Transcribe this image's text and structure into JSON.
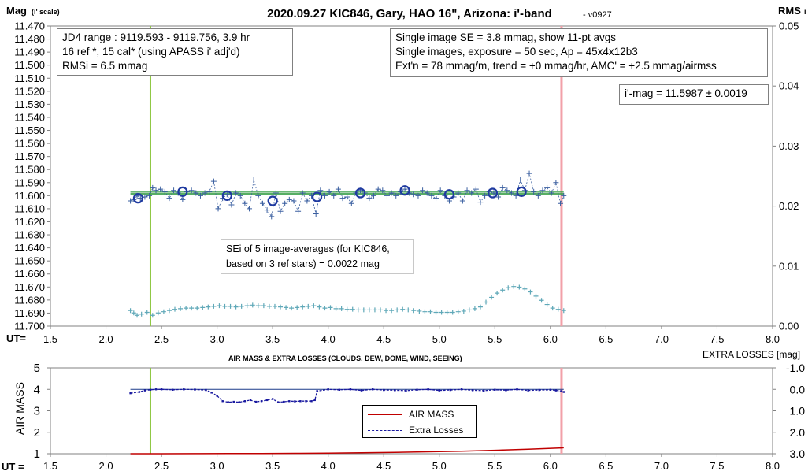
{
  "chart_data": [
    {
      "type": "scatter",
      "title": "2020.09.27 KIC846, Gary, HAO 16\", Arizona: i'-band",
      "version": "- v0927",
      "ylabel": "Mag",
      "ylabel_sub": "(i' scale)",
      "y2label": "RMS",
      "y2label_sub": "i",
      "xlabel": "UT=",
      "xlim": [
        1.5,
        8.0
      ],
      "ylim": [
        11.47,
        11.7
      ],
      "y_reversed": true,
      "y2lim": [
        0.0,
        0.05
      ],
      "x_ticks": [
        "1.5",
        "2.0",
        "2.5",
        "3.0",
        "3.5",
        "4.0",
        "4.5",
        "5.0",
        "5.5",
        "6.0",
        "6.5",
        "7.0",
        "7.5",
        "8.0"
      ],
      "y_ticks": [
        "11.470",
        "11.480",
        "11.490",
        "11.500",
        "11.510",
        "11.520",
        "11.530",
        "11.540",
        "11.550",
        "11.560",
        "11.570",
        "11.580",
        "11.590",
        "11.600",
        "11.610",
        "11.620",
        "11.630",
        "11.640",
        "11.650",
        "11.660",
        "11.670",
        "11.680",
        "11.690",
        "11.700"
      ],
      "y2_ticks": [
        "0.05",
        "0.04",
        "0.03",
        "0.02",
        "0.01",
        "0.00"
      ],
      "grid": false,
      "reference_lines": {
        "green_ut": 2.4,
        "pink_ut": 6.1
      },
      "mean_mag": 11.5987,
      "series": [
        {
          "name": "11-pt averages",
          "x": [
            2.29,
            2.69,
            3.09,
            3.5,
            3.9,
            4.29,
            4.69,
            5.09,
            5.48,
            5.74
          ],
          "y": [
            11.602,
            11.597,
            11.6,
            11.604,
            11.601,
            11.598,
            11.596,
            11.599,
            11.598,
            11.597
          ]
        },
        {
          "name": "Single images",
          "x": [
            2.22,
            2.25,
            2.28,
            2.31,
            2.35,
            2.39,
            2.42,
            2.45,
            2.49,
            2.53,
            2.57,
            2.61,
            2.65,
            2.69,
            2.73,
            2.77,
            2.81,
            2.85,
            2.89,
            2.93,
            2.97,
            3.01,
            3.05,
            3.09,
            3.13,
            3.17,
            3.21,
            3.25,
            3.29,
            3.33,
            3.37,
            3.41,
            3.45,
            3.49,
            3.53,
            3.57,
            3.61,
            3.65,
            3.69,
            3.73,
            3.77,
            3.81,
            3.85,
            3.89,
            3.93,
            3.97,
            4.01,
            4.05,
            4.09,
            4.13,
            4.17,
            4.21,
            4.25,
            4.29,
            4.33,
            4.37,
            4.41,
            4.45,
            4.49,
            4.53,
            4.57,
            4.61,
            4.65,
            4.69,
            4.73,
            4.77,
            4.81,
            4.85,
            4.89,
            4.93,
            4.97,
            5.01,
            5.05,
            5.09,
            5.13,
            5.17,
            5.21,
            5.25,
            5.29,
            5.33,
            5.37,
            5.41,
            5.45,
            5.49,
            5.53,
            5.57,
            5.61,
            5.65,
            5.69,
            5.73,
            5.77,
            5.81,
            5.85,
            5.89,
            5.93,
            5.97,
            6.01,
            6.05,
            6.09,
            6.12
          ],
          "y": [
            11.604,
            11.603,
            11.6,
            11.602,
            11.601,
            11.6,
            11.594,
            11.596,
            11.595,
            11.597,
            11.602,
            11.596,
            11.598,
            11.603,
            11.597,
            11.596,
            11.598,
            11.6,
            11.598,
            11.597,
            11.589,
            11.61,
            11.602,
            11.599,
            11.607,
            11.598,
            11.6,
            11.606,
            11.61,
            11.588,
            11.6,
            11.606,
            11.611,
            11.616,
            11.598,
            11.612,
            11.606,
            11.603,
            11.604,
            11.612,
            11.598,
            11.604,
            11.6,
            11.614,
            11.596,
            11.6,
            11.597,
            11.6,
            11.595,
            11.602,
            11.601,
            11.606,
            11.598,
            11.596,
            11.598,
            11.602,
            11.6,
            11.595,
            11.596,
            11.6,
            11.598,
            11.6,
            11.597,
            11.595,
            11.598,
            11.599,
            11.6,
            11.596,
            11.598,
            11.6,
            11.602,
            11.596,
            11.6,
            11.604,
            11.601,
            11.598,
            11.604,
            11.596,
            11.598,
            11.595,
            11.605,
            11.6,
            11.597,
            11.598,
            11.601,
            11.594,
            11.596,
            11.598,
            11.6,
            11.588,
            11.596,
            11.583,
            11.597,
            11.6,
            11.596,
            11.594,
            11.598,
            11.59,
            11.606,
            11.6
          ]
        },
        {
          "name": "RMSi",
          "x": [
            2.22,
            2.25,
            2.28,
            2.32,
            2.37,
            2.42,
            2.47,
            2.52,
            2.57,
            2.62,
            2.67,
            2.72,
            2.77,
            2.82,
            2.87,
            2.92,
            2.97,
            3.02,
            3.07,
            3.12,
            3.17,
            3.22,
            3.27,
            3.32,
            3.37,
            3.42,
            3.47,
            3.52,
            3.57,
            3.62,
            3.67,
            3.72,
            3.77,
            3.82,
            3.87,
            3.92,
            3.97,
            4.02,
            4.07,
            4.12,
            4.17,
            4.22,
            4.27,
            4.32,
            4.37,
            4.42,
            4.47,
            4.52,
            4.57,
            4.62,
            4.67,
            4.72,
            4.77,
            4.82,
            4.87,
            4.92,
            4.97,
            5.02,
            5.07,
            5.12,
            5.17,
            5.22,
            5.27,
            5.32,
            5.37,
            5.42,
            5.47,
            5.52,
            5.57,
            5.62,
            5.67,
            5.72,
            5.77,
            5.82,
            5.87,
            5.92,
            5.97,
            6.02,
            6.07,
            6.12
          ],
          "y": [
            0.0026,
            0.0022,
            0.0018,
            0.002,
            0.0023,
            0.0018,
            0.0022,
            0.0024,
            0.0026,
            0.0028,
            0.0029,
            0.003,
            0.003,
            0.003,
            0.0031,
            0.0032,
            0.0033,
            0.0034,
            0.0033,
            0.0033,
            0.0032,
            0.0033,
            0.0034,
            0.0035,
            0.0034,
            0.0034,
            0.0033,
            0.0033,
            0.0032,
            0.0031,
            0.003,
            0.0031,
            0.0032,
            0.0033,
            0.0034,
            0.0032,
            0.003,
            0.0031,
            0.0029,
            0.0029,
            0.0028,
            0.0028,
            0.0027,
            0.0027,
            0.0027,
            0.0027,
            0.0027,
            0.0026,
            0.0026,
            0.0027,
            0.0028,
            0.0027,
            0.0026,
            0.0025,
            0.0024,
            0.0024,
            0.0023,
            0.0023,
            0.0023,
            0.0023,
            0.0024,
            0.0025,
            0.0027,
            0.0029,
            0.0032,
            0.004,
            0.0048,
            0.0055,
            0.006,
            0.0064,
            0.0066,
            0.0065,
            0.0062,
            0.0057,
            0.005,
            0.0043,
            0.0036,
            0.003,
            0.0028,
            0.0026
          ]
        }
      ]
    },
    {
      "type": "line",
      "title": "AIR MASS & EXTRA LOSSES (CLOUDS, DEW, DOME, WIND, SEEING)",
      "ylabel": "AIR MASS",
      "y2label": "EXTRA LOSSES [mag]",
      "xlabel": "UT =",
      "xlim": [
        1.5,
        8.0
      ],
      "ylim": [
        1,
        5
      ],
      "y2lim": [
        -1.0,
        3.0
      ],
      "y2_reversed": true,
      "x_ticks": [
        "1.5",
        "2.0",
        "2.5",
        "3.0",
        "3.5",
        "4.0",
        "4.5",
        "5.0",
        "5.5",
        "6.0",
        "6.5",
        "7.0",
        "7.5",
        "8.0"
      ],
      "y_ticks": [
        "5",
        "4",
        "3",
        "2",
        "1"
      ],
      "y2_ticks": [
        "-1.0",
        "0.0",
        "1.0",
        "2.0",
        "3.0"
      ],
      "zero_loss_line": 0.0,
      "series": [
        {
          "name": "AIR MASS",
          "x": [
            2.22,
            2.5,
            2.8,
            3.1,
            3.4,
            3.7,
            4.0,
            4.3,
            4.6,
            4.9,
            5.2,
            5.5,
            5.8,
            6.1,
            6.12
          ],
          "y": [
            1.0,
            1.001,
            1.003,
            1.007,
            1.012,
            1.02,
            1.03,
            1.045,
            1.065,
            1.09,
            1.12,
            1.16,
            1.21,
            1.27,
            1.28
          ]
        },
        {
          "name": "Extra Losses",
          "x": [
            2.22,
            2.3,
            2.35,
            2.4,
            2.45,
            2.5,
            2.6,
            2.7,
            2.8,
            2.9,
            2.95,
            3.0,
            3.05,
            3.1,
            3.15,
            3.2,
            3.25,
            3.3,
            3.35,
            3.4,
            3.45,
            3.5,
            3.55,
            3.6,
            3.65,
            3.7,
            3.75,
            3.8,
            3.85,
            3.88,
            3.9,
            4.0,
            4.1,
            4.2,
            4.3,
            4.4,
            4.5,
            4.6,
            4.7,
            4.8,
            4.9,
            5.0,
            5.1,
            5.2,
            5.3,
            5.4,
            5.5,
            5.6,
            5.7,
            5.8,
            5.9,
            6.0,
            6.05,
            6.1,
            6.12
          ],
          "y": [
            0.18,
            0.12,
            0.05,
            0.02,
            0.0,
            0.0,
            0.02,
            0.0,
            0.01,
            0.03,
            0.15,
            0.3,
            0.55,
            0.6,
            0.58,
            0.6,
            0.55,
            0.5,
            0.58,
            0.55,
            0.5,
            0.45,
            0.6,
            0.58,
            0.55,
            0.56,
            0.55,
            0.55,
            0.55,
            0.5,
            0.08,
            0.0,
            0.02,
            0.0,
            0.05,
            0.0,
            0.03,
            0.04,
            0.06,
            0.02,
            0.0,
            0.05,
            0.03,
            0.0,
            0.04,
            0.06,
            0.02,
            0.04,
            0.0,
            0.05,
            0.03,
            0.02,
            0.05,
            0.08,
            0.12
          ]
        }
      ]
    }
  ],
  "annotations": {
    "jd_box": [
      "JD4 range : 9119.593 - 9119.756, 3.9  hr",
      "16 ref *, 15 cal* (using APASS i' adj'd)",
      "RMSi = 6.5 mmag"
    ],
    "info_box": [
      "Single image SE = 3.8 mmag, show 11-pt avgs",
      "Single images, exposure = 50 sec, Ap = 45x4x12b3",
      "Ext'n = 78 mmag/m, trend = +0 mmag/hr, AMC' = +2.5 mmag/airmss"
    ],
    "mag_box": "i'-mag = 11.5987 ± 0.0019",
    "sei_box": [
      "SEi of 5 image-averages (for KIC846,",
      "based on 3 ref stars) = 0.0022 mag"
    ]
  },
  "colors": {
    "avg_circle": "#1f3aa0",
    "single_points": "#3a5fa0",
    "rms_points": "#5fa8b8",
    "mean_line": "#3aa04a",
    "green_vline": "#8cc63f",
    "pink_vline": "#f2a0a8",
    "airmass_line": "#c00000",
    "losses_line": "#1a1aa0",
    "zero_line": "#1a3a8a"
  }
}
